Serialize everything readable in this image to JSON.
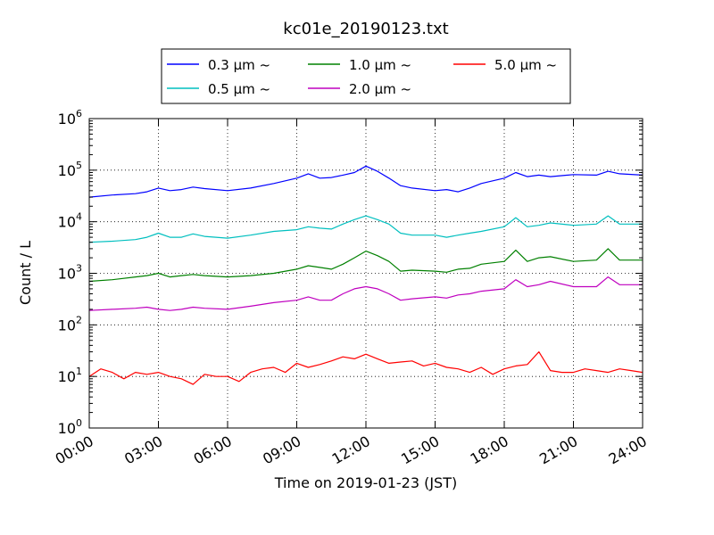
{
  "chart_data": {
    "type": "line",
    "title": "kc01e_20190123.txt",
    "xlabel": "Time on 2019-01-23 (JST)",
    "ylabel": "Count / L",
    "x_unit": "hours",
    "xlim": [
      0,
      24
    ],
    "ylim": [
      1,
      1000000
    ],
    "y_scale": "log",
    "grid": true,
    "legend_position": "top-center",
    "x_ticks": [
      {
        "value": 0,
        "label": "00:00"
      },
      {
        "value": 3,
        "label": "03:00"
      },
      {
        "value": 6,
        "label": "06:00"
      },
      {
        "value": 9,
        "label": "09:00"
      },
      {
        "value": 12,
        "label": "12:00"
      },
      {
        "value": 15,
        "label": "15:00"
      },
      {
        "value": 18,
        "label": "18:00"
      },
      {
        "value": 21,
        "label": "21:00"
      },
      {
        "value": 24,
        "label": "24:00"
      }
    ],
    "y_ticks": [
      {
        "value": 1,
        "base": "10",
        "exp": "0"
      },
      {
        "value": 10,
        "base": "10",
        "exp": "1"
      },
      {
        "value": 100,
        "base": "10",
        "exp": "2"
      },
      {
        "value": 1000,
        "base": "10",
        "exp": "3"
      },
      {
        "value": 10000,
        "base": "10",
        "exp": "4"
      },
      {
        "value": 100000,
        "base": "10",
        "exp": "5"
      },
      {
        "value": 1000000,
        "base": "10",
        "exp": "6"
      }
    ],
    "series": [
      {
        "name": "0.3 μm ~",
        "color": "#0000ff",
        "x": [
          0,
          1,
          2,
          2.5,
          3,
          3.5,
          4,
          4.5,
          5,
          6,
          7,
          8,
          9,
          9.5,
          10,
          10.5,
          11,
          11.5,
          12,
          12.5,
          13,
          13.5,
          14,
          15,
          15.5,
          16,
          16.5,
          17,
          18,
          18.5,
          19,
          19.5,
          20,
          21,
          22,
          22.5,
          23,
          24
        ],
        "y": [
          30000,
          33000,
          35000,
          38000,
          45000,
          40000,
          42000,
          47000,
          44000,
          40000,
          45000,
          55000,
          70000,
          85000,
          70000,
          72000,
          80000,
          90000,
          120000,
          95000,
          70000,
          50000,
          45000,
          40000,
          42000,
          38000,
          45000,
          55000,
          70000,
          90000,
          75000,
          80000,
          75000,
          82000,
          80000,
          95000,
          85000,
          80000
        ]
      },
      {
        "name": "0.5 μm ~",
        "color": "#00bfbf",
        "x": [
          0,
          1,
          2,
          2.5,
          3,
          3.5,
          4,
          4.5,
          5,
          6,
          7,
          8,
          9,
          9.5,
          10,
          10.5,
          11,
          11.5,
          12,
          12.5,
          13,
          13.5,
          14,
          15,
          15.5,
          16,
          16.5,
          17,
          18,
          18.5,
          19,
          19.5,
          20,
          21,
          22,
          22.5,
          23,
          24
        ],
        "y": [
          4000,
          4200,
          4500,
          5000,
          6000,
          5000,
          5000,
          5800,
          5200,
          4800,
          5500,
          6500,
          7000,
          8000,
          7500,
          7200,
          9000,
          11000,
          13000,
          11000,
          9000,
          6000,
          5500,
          5500,
          5000,
          5500,
          6000,
          6500,
          8000,
          12000,
          8000,
          8500,
          9500,
          8500,
          9000,
          13000,
          9000,
          9000
        ]
      },
      {
        "name": "1.0 μm ~",
        "color": "#008000",
        "x": [
          0,
          1,
          2,
          2.5,
          3,
          3.5,
          4,
          4.5,
          5,
          6,
          7,
          8,
          9,
          9.5,
          10,
          10.5,
          11,
          11.5,
          12,
          12.5,
          13,
          13.5,
          14,
          15,
          15.5,
          16,
          16.5,
          17,
          18,
          18.5,
          19,
          19.5,
          20,
          21,
          22,
          22.5,
          23,
          24
        ],
        "y": [
          700,
          750,
          850,
          900,
          1000,
          850,
          900,
          950,
          900,
          850,
          900,
          1000,
          1200,
          1400,
          1300,
          1200,
          1500,
          2000,
          2700,
          2200,
          1700,
          1100,
          1150,
          1100,
          1050,
          1200,
          1250,
          1500,
          1700,
          2800,
          1700,
          2000,
          2100,
          1700,
          1800,
          3000,
          1800,
          1800
        ]
      },
      {
        "name": "2.0 μm ~",
        "color": "#bf00bf",
        "x": [
          0,
          1,
          2,
          2.5,
          3,
          3.5,
          4,
          4.5,
          5,
          6,
          7,
          8,
          9,
          9.5,
          10,
          10.5,
          11,
          11.5,
          12,
          12.5,
          13,
          13.5,
          14,
          15,
          15.5,
          16,
          16.5,
          17,
          18,
          18.5,
          19,
          19.5,
          20,
          21,
          22,
          22.5,
          23,
          24
        ],
        "y": [
          190,
          200,
          210,
          220,
          200,
          190,
          200,
          220,
          210,
          200,
          230,
          270,
          300,
          350,
          300,
          300,
          400,
          500,
          550,
          500,
          400,
          300,
          320,
          350,
          330,
          380,
          400,
          450,
          500,
          750,
          550,
          600,
          700,
          550,
          550,
          850,
          600,
          600
        ]
      },
      {
        "name": "5.0 μm ~",
        "color": "#ff0000",
        "x": [
          0,
          0.5,
          1,
          1.5,
          2,
          2.5,
          3,
          3.5,
          4,
          4.5,
          5,
          5.5,
          6,
          6.5,
          7,
          7.5,
          8,
          8.5,
          9,
          9.5,
          10,
          10.5,
          11,
          11.5,
          12,
          12.5,
          13,
          13.5,
          14,
          14.5,
          15,
          15.5,
          16,
          16.5,
          17,
          17.5,
          18,
          18.5,
          19,
          19.5,
          20,
          20.5,
          21,
          21.5,
          22,
          22.5,
          23,
          23.5,
          24
        ],
        "y": [
          10,
          14,
          12,
          9,
          12,
          11,
          12,
          10,
          9,
          7,
          11,
          10,
          10,
          8,
          12,
          14,
          15,
          12,
          18,
          15,
          17,
          20,
          24,
          22,
          27,
          22,
          18,
          19,
          20,
          16,
          18,
          15,
          14,
          12,
          15,
          11,
          14,
          16,
          17,
          30,
          13,
          12,
          12,
          14,
          13,
          12,
          14,
          13,
          12
        ]
      }
    ]
  }
}
